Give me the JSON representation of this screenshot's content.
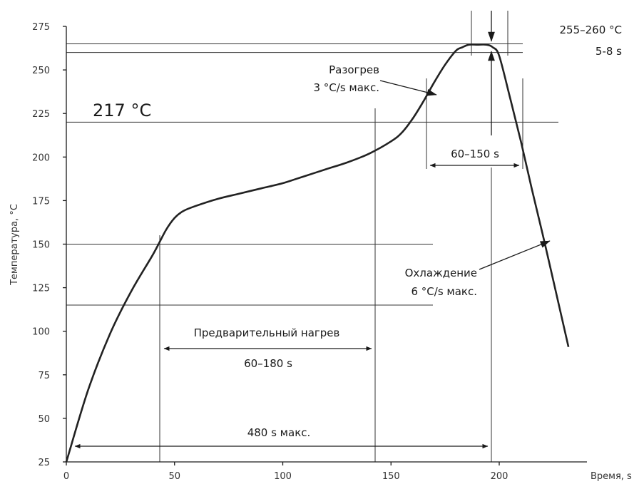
{
  "chart_data": {
    "type": "line",
    "xlabel": "Время, s",
    "ylabel": "Температура, °C",
    "xlim": [
      0,
      240
    ],
    "ylim": [
      25,
      275
    ],
    "xticks": [
      0,
      50,
      100,
      150,
      200
    ],
    "yticks": [
      25,
      50,
      75,
      100,
      125,
      150,
      175,
      200,
      225,
      250,
      275
    ],
    "series": [
      {
        "x": [
          0,
          10,
          20,
          30,
          40,
          46,
          50,
          54,
          60,
          70,
          80,
          90,
          100,
          110,
          120,
          130,
          140,
          150,
          155,
          160,
          165,
          170,
          175,
          180,
          183,
          186,
          190,
          194,
          197,
          200,
          205,
          210,
          215,
          220,
          225,
          232
        ],
        "y": [
          25,
          66,
          98,
          123,
          144,
          158,
          165,
          169,
          172,
          176,
          179,
          182,
          185,
          189,
          193,
          197,
          202,
          209,
          214,
          222,
          232,
          243,
          253,
          261,
          263,
          264.5,
          264.5,
          264.5,
          263,
          258,
          234,
          209,
          182,
          156,
          129,
          91
        ]
      }
    ],
    "reference_lines": {
      "horizontal": [
        265,
        260,
        220,
        150,
        115
      ]
    },
    "annotations": {
      "peak_temp": "255–260 °C",
      "peak_time": "5-8 s",
      "heating_label": "Разогрев",
      "heating_rate": "3 °C/s макс.",
      "liquidus": "217 °C",
      "above_liquidus_time": "60–150 s",
      "cooling_label": "Охлаждение",
      "cooling_rate": "6 °C/s макс.",
      "preheat_label": "Предварительный нагрев",
      "preheat_time": "60–180 s",
      "total_time": "480 s макс."
    }
  }
}
